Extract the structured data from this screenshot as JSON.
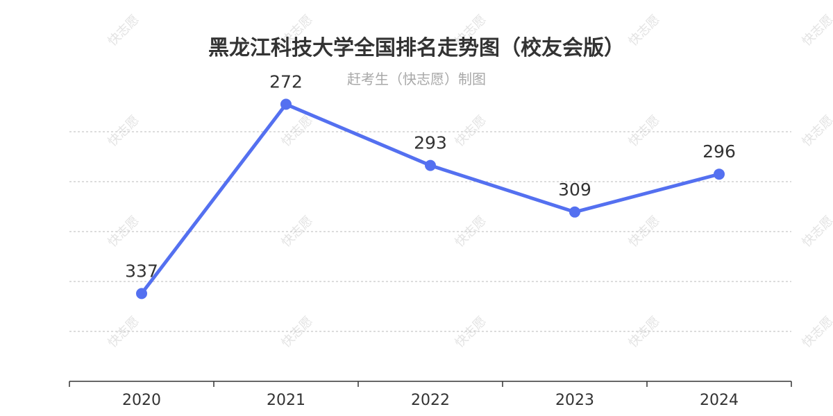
{
  "title": "黑龙江科技大学全国排名走势图（校友会版）",
  "subtitle": "赶考生（快志愿）制图",
  "watermark": "快志愿",
  "colors": {
    "line": "#5470f0",
    "grid": "#c8c8c8",
    "axis": "#333333",
    "watermark": "#e3e3e3"
  },
  "chart_data": {
    "type": "line",
    "categories": [
      "2020",
      "2021",
      "2022",
      "2023",
      "2024"
    ],
    "values": [
      337,
      272,
      293,
      309,
      296
    ],
    "y_inverted": true,
    "ylim": [
      260,
      360
    ],
    "grid": "dashed-horizontal",
    "legend": "none"
  }
}
